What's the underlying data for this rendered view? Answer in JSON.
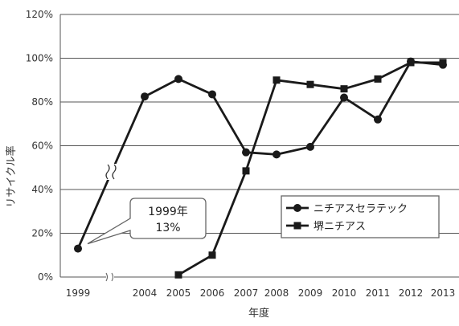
{
  "chart_data": {
    "type": "line",
    "title": "",
    "xlabel": "年度",
    "ylabel": "リサイクル率",
    "categories": [
      "1999",
      "2004",
      "2005",
      "2006",
      "2007",
      "2008",
      "2009",
      "2010",
      "2011",
      "2012",
      "2013"
    ],
    "y_ticks": [
      "0%",
      "20%",
      "40%",
      "60%",
      "80%",
      "100%",
      "120%"
    ],
    "ylim": [
      0,
      120
    ],
    "y_unit": "%",
    "grid": "horizontal",
    "axis_break": "between 1999 and 2004",
    "legend_position": "right-middle",
    "series": [
      {
        "name": "ニチアスセラテック",
        "marker": "circle",
        "color": "#1a1a1a",
        "values": [
          13,
          82.5,
          90.5,
          83.5,
          57,
          56,
          59.5,
          82,
          72,
          98.5,
          97
        ]
      },
      {
        "name": "堺ニチアス",
        "marker": "square",
        "color": "#1a1a1a",
        "values": [
          null,
          null,
          1,
          10,
          48.5,
          90,
          88,
          86,
          90.5,
          98,
          98
        ]
      }
    ],
    "annotation": {
      "line1": "1999年",
      "line2": "13%"
    }
  }
}
